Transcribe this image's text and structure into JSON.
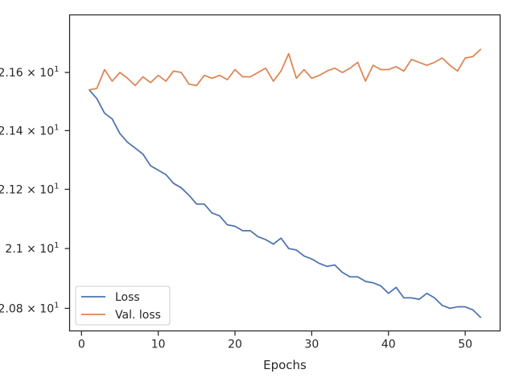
{
  "chart_data": {
    "type": "line",
    "title": "",
    "xlabel": "Epochs",
    "ylabel": "",
    "yscale": "log",
    "xlim": [
      -1.55,
      54.55
    ],
    "ylim": [
      20.725,
      21.8
    ],
    "x_ticks": [
      0,
      10,
      20,
      30,
      40,
      50
    ],
    "y_ticks": [
      {
        "value": 20.8,
        "label_base": "2.08 × 10",
        "label_exp": "1"
      },
      {
        "value": 21.0,
        "label_base": "2.1 × 10",
        "label_exp": "1"
      },
      {
        "value": 21.2,
        "label_base": "2.12 × 10",
        "label_exp": "1"
      },
      {
        "value": 21.4,
        "label_base": "2.14 × 10",
        "label_exp": "1"
      },
      {
        "value": 21.6,
        "label_base": "2.16 × 10",
        "label_exp": "1"
      }
    ],
    "grid": false,
    "legend_position": "lower-left",
    "x": [
      1,
      2,
      3,
      4,
      5,
      6,
      7,
      8,
      9,
      10,
      11,
      12,
      13,
      14,
      15,
      16,
      17,
      18,
      19,
      20,
      21,
      22,
      23,
      24,
      25,
      26,
      27,
      28,
      29,
      30,
      31,
      32,
      33,
      34,
      35,
      36,
      37,
      38,
      39,
      40,
      41,
      42,
      43,
      44,
      45,
      46,
      47,
      48,
      49,
      50,
      51,
      52
    ],
    "series": [
      {
        "name": "Loss",
        "color": "#4c72b0",
        "values": [
          21.54,
          21.51,
          21.46,
          21.44,
          21.39,
          21.36,
          21.34,
          21.32,
          21.28,
          21.265,
          21.25,
          21.22,
          21.205,
          21.18,
          21.15,
          21.15,
          21.12,
          21.11,
          21.08,
          21.075,
          21.06,
          21.06,
          21.04,
          21.03,
          21.015,
          21.035,
          21.0,
          20.995,
          20.975,
          20.965,
          20.95,
          20.94,
          20.945,
          20.92,
          20.905,
          20.905,
          20.89,
          20.885,
          20.875,
          20.85,
          20.87,
          20.835,
          20.835,
          20.83,
          20.85,
          20.835,
          20.81,
          20.8,
          20.805,
          20.805,
          20.795,
          20.77
        ]
      },
      {
        "name": "Val. loss",
        "color": "#dd8452",
        "values": [
          21.54,
          21.545,
          21.61,
          21.57,
          21.6,
          21.58,
          21.555,
          21.585,
          21.565,
          21.59,
          21.57,
          21.605,
          21.6,
          21.56,
          21.555,
          21.59,
          21.58,
          21.59,
          21.575,
          21.61,
          21.585,
          21.585,
          21.6,
          21.615,
          21.57,
          21.605,
          21.665,
          21.58,
          21.61,
          21.58,
          21.59,
          21.605,
          21.615,
          21.6,
          21.615,
          21.635,
          21.57,
          21.625,
          21.61,
          21.61,
          21.62,
          21.605,
          21.645,
          21.635,
          21.625,
          21.635,
          21.65,
          21.625,
          21.605,
          21.65,
          21.655,
          21.68
        ]
      }
    ]
  }
}
